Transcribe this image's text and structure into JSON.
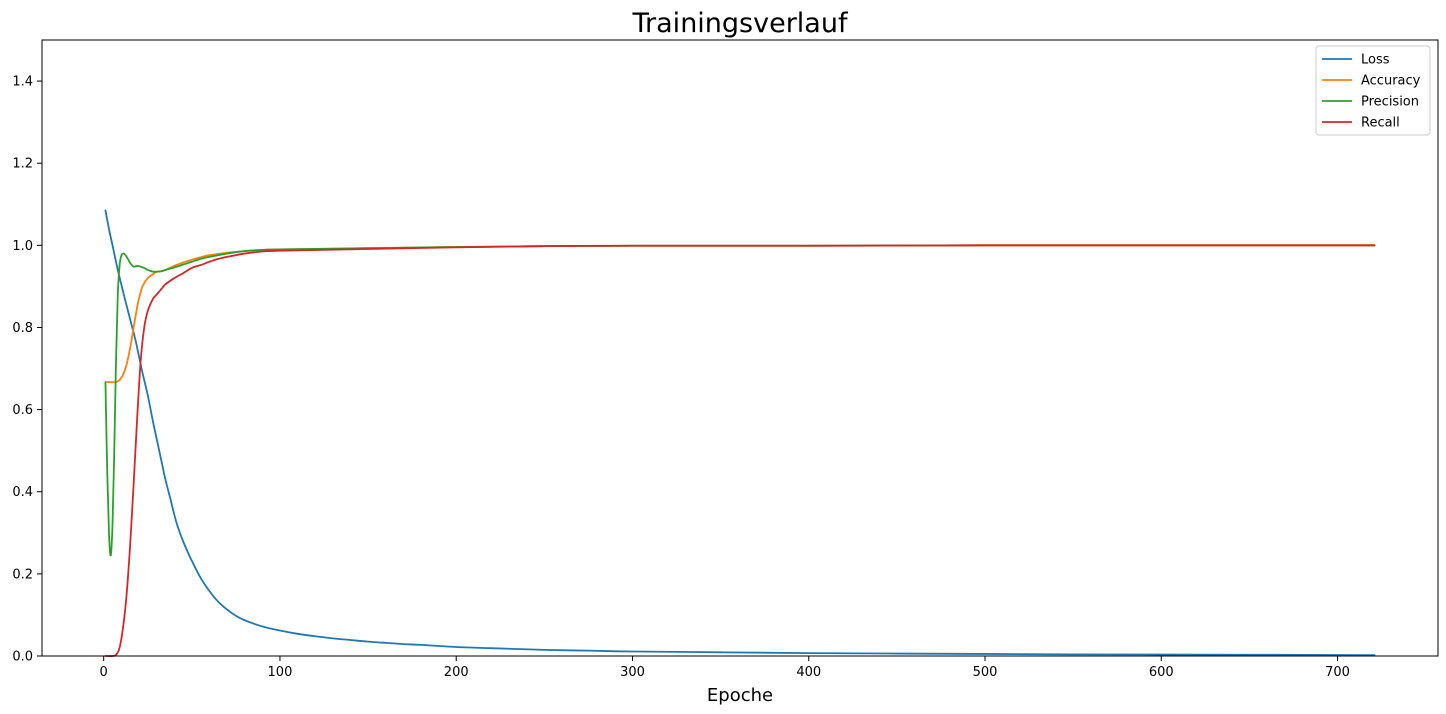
{
  "chart_data": {
    "type": "line",
    "title": "Trainingsverlauf",
    "xlabel": "Epoche",
    "ylabel": "",
    "xlim": [
      -35,
      757
    ],
    "ylim": [
      0,
      1.5
    ],
    "xticks": [
      0,
      100,
      200,
      300,
      400,
      500,
      600,
      700
    ],
    "yticks": [
      0.0,
      0.2,
      0.4,
      0.6,
      0.8,
      1.0,
      1.2,
      1.4
    ],
    "grid": false,
    "legend_position": "top-right",
    "series": [
      {
        "name": "Loss",
        "color": "#1f77b4",
        "x": [
          1,
          3,
          5,
          8,
          10,
          12,
          15,
          18,
          20,
          22,
          25,
          28,
          30,
          33,
          35,
          38,
          40,
          42,
          45,
          48,
          50,
          55,
          60,
          65,
          70,
          75,
          80,
          90,
          100,
          110,
          120,
          130,
          140,
          150,
          160,
          170,
          180,
          200,
          220,
          250,
          275,
          300,
          350,
          400,
          450,
          500,
          550,
          600,
          650,
          700,
          721
        ],
        "y": [
          1.085,
          1.04,
          1.0,
          0.94,
          0.905,
          0.87,
          0.82,
          0.77,
          0.73,
          0.69,
          0.635,
          0.57,
          0.53,
          0.47,
          0.43,
          0.38,
          0.345,
          0.315,
          0.28,
          0.25,
          0.232,
          0.19,
          0.158,
          0.132,
          0.113,
          0.098,
          0.087,
          0.072,
          0.062,
          0.054,
          0.048,
          0.043,
          0.039,
          0.035,
          0.032,
          0.029,
          0.027,
          0.022,
          0.019,
          0.015,
          0.013,
          0.011,
          0.009,
          0.007,
          0.006,
          0.005,
          0.004,
          0.0035,
          0.003,
          0.0025,
          0.002
        ]
      },
      {
        "name": "Accuracy",
        "color": "#ff7f0e",
        "x": [
          1,
          3,
          5,
          7,
          9,
          11,
          13,
          15,
          17,
          19,
          20,
          22,
          25,
          28,
          30,
          35,
          40,
          45,
          50,
          55,
          60,
          70,
          80,
          90,
          100,
          150,
          200,
          250,
          300,
          400,
          500,
          600,
          700,
          721
        ],
        "y": [
          0.667,
          0.667,
          0.667,
          0.667,
          0.672,
          0.685,
          0.71,
          0.75,
          0.8,
          0.85,
          0.87,
          0.9,
          0.92,
          0.93,
          0.935,
          0.94,
          0.95,
          0.958,
          0.965,
          0.971,
          0.976,
          0.982,
          0.986,
          0.989,
          0.99,
          0.993,
          0.996,
          0.998,
          0.999,
          0.999,
          1.0,
          1.0,
          1.0,
          1.0
        ]
      },
      {
        "name": "Precision",
        "color": "#2ca02c",
        "x": [
          1,
          2,
          3,
          4,
          5,
          6,
          7,
          8,
          9,
          10,
          11,
          12,
          13,
          14,
          15,
          17,
          19,
          21,
          23,
          25,
          28,
          30,
          33,
          35,
          40,
          45,
          50,
          55,
          60,
          70,
          80,
          90,
          100,
          150,
          200,
          250,
          300,
          400,
          500,
          600,
          700,
          721
        ],
        "y": [
          0.667,
          0.45,
          0.3,
          0.245,
          0.32,
          0.5,
          0.72,
          0.88,
          0.95,
          0.975,
          0.98,
          0.978,
          0.972,
          0.965,
          0.957,
          0.948,
          0.95,
          0.948,
          0.945,
          0.94,
          0.936,
          0.936,
          0.937,
          0.94,
          0.946,
          0.953,
          0.96,
          0.967,
          0.972,
          0.98,
          0.986,
          0.989,
          0.99,
          0.993,
          0.996,
          0.998,
          0.999,
          0.999,
          1.0,
          1.0,
          1.0,
          1.0
        ]
      },
      {
        "name": "Recall",
        "color": "#d62728",
        "x": [
          1,
          5,
          7,
          9,
          11,
          13,
          15,
          17,
          19,
          21,
          23,
          25,
          28,
          30,
          33,
          35,
          40,
          45,
          50,
          55,
          60,
          65,
          70,
          80,
          90,
          100,
          150,
          200,
          250,
          300,
          400,
          500,
          600,
          700,
          721
        ],
        "y": [
          0.0,
          0.0,
          0.003,
          0.02,
          0.07,
          0.15,
          0.27,
          0.42,
          0.58,
          0.72,
          0.8,
          0.84,
          0.87,
          0.88,
          0.895,
          0.905,
          0.92,
          0.932,
          0.945,
          0.952,
          0.96,
          0.967,
          0.972,
          0.98,
          0.985,
          0.987,
          0.991,
          0.995,
          0.998,
          0.999,
          0.999,
          1.0,
          1.0,
          1.0,
          1.0
        ]
      }
    ]
  }
}
